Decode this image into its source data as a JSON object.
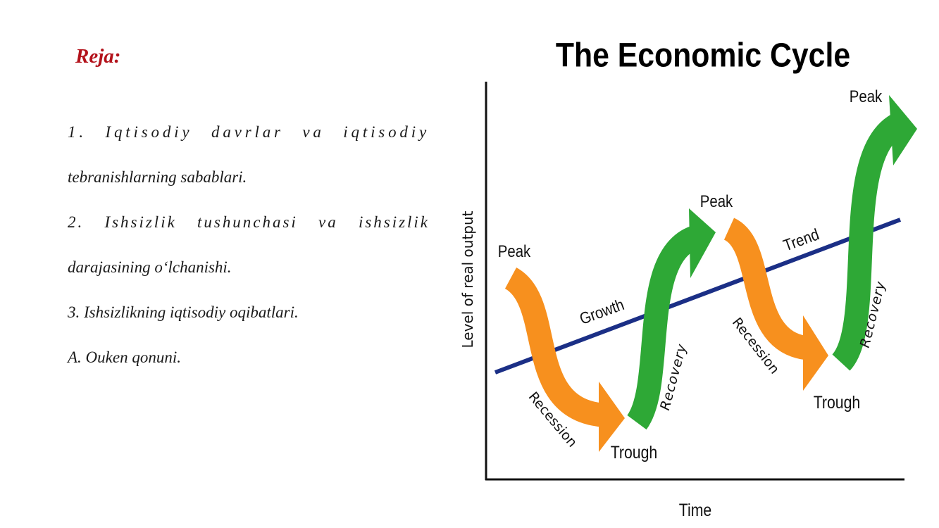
{
  "plan": {
    "title": "Reja:",
    "items": [
      {
        "line1": "1. Iqtisodiy davrlar va iqtisodiy",
        "line2": "tebranishlarning sabablari."
      },
      {
        "line1": "2. Ishsizlik tushunchasi va ishsizlik",
        "line2": "darajasining o‘lchanishi."
      },
      {
        "line1": "3. Ishsizlikning iqtisodiy oqibatlari."
      },
      {
        "line1": "A. Ouken qonuni."
      }
    ]
  },
  "diagram": {
    "title": "The Economic Cycle",
    "y_axis_label": "Level of real output",
    "x_axis_label": "Time",
    "labels": {
      "peak": "Peak",
      "trough": "Trough",
      "recession": "Recession",
      "recovery": "Recovery",
      "growth": "Growth",
      "trend": "Trend"
    },
    "colors": {
      "recession_arrow": "#f7901e",
      "recovery_arrow": "#2ea836",
      "trend_line": "#1b2f86",
      "axis": "#111111",
      "plan_title": "#b3121b"
    }
  }
}
